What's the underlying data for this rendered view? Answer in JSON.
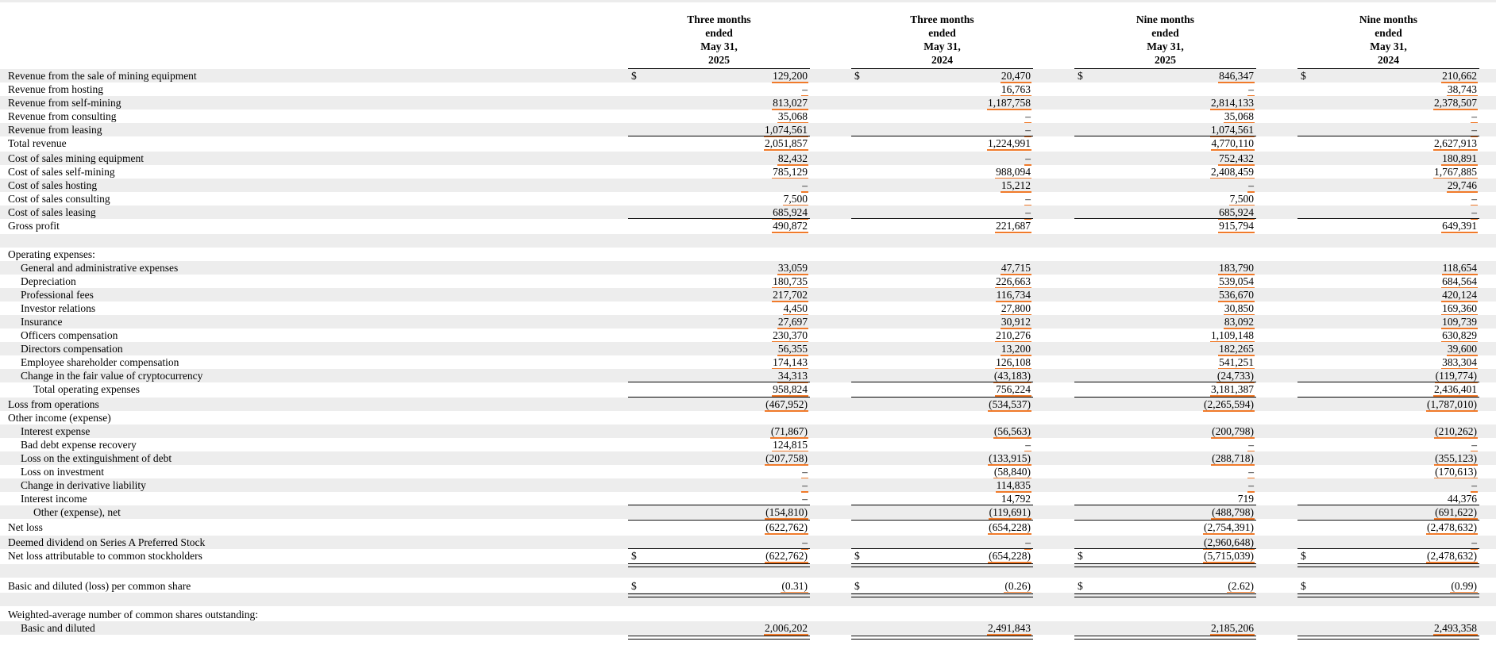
{
  "columns": [
    {
      "h1": "Three months",
      "h2": "ended",
      "h3": "May 31,",
      "h4": "2025"
    },
    {
      "h1": "Three months",
      "h2": "ended",
      "h3": "May 31,",
      "h4": "2024"
    },
    {
      "h1": "Nine months",
      "h2": "ended",
      "h3": "May 31,",
      "h4": "2025"
    },
    {
      "h1": "Nine months",
      "h2": "ended",
      "h3": "May 31,",
      "h4": "2024"
    }
  ],
  "dollar_sign": "$",
  "rows": [
    {
      "label": "Revenue from the sale of mining equipment",
      "values": [
        "129,200",
        "20,470",
        "846,347",
        "210,662"
      ],
      "dollar": true
    },
    {
      "label": "Revenue from hosting",
      "values": [
        "–",
        "16,763",
        "–",
        "38,743"
      ]
    },
    {
      "label": "Revenue from self-mining",
      "values": [
        "813,027",
        "1,187,758",
        "2,814,133",
        "2,378,507"
      ]
    },
    {
      "label": "Revenue from consulting",
      "values": [
        "35,068",
        "–",
        "35,068",
        "–"
      ]
    },
    {
      "label": "Revenue from leasing",
      "values": [
        "1,074,561",
        "–",
        "1,074,561",
        "–"
      ]
    },
    {
      "label": "Total revenue",
      "values": [
        "2,051,857",
        "1,224,991",
        "4,770,110",
        "2,627,913"
      ]
    },
    {
      "label": "Cost of sales mining equipment",
      "values": [
        "82,432",
        "–",
        "752,432",
        "180,891"
      ]
    },
    {
      "label": "Cost of sales self-mining",
      "values": [
        "785,129",
        "988,094",
        "2,408,459",
        "1,767,885"
      ]
    },
    {
      "label": "Cost of sales hosting",
      "values": [
        "–",
        "15,212",
        "–",
        "29,746"
      ]
    },
    {
      "label": "Cost of sales consulting",
      "values": [
        "7,500",
        "–",
        "7,500",
        "–"
      ]
    },
    {
      "label": "Cost of sales leasing",
      "values": [
        "685,924",
        "–",
        "685,924",
        "–"
      ]
    },
    {
      "label": "Gross profit",
      "values": [
        "490,872",
        "221,687",
        "915,794",
        "649,391"
      ]
    },
    {
      "label": "",
      "values": [
        "",
        "",
        "",
        ""
      ]
    },
    {
      "label": "Operating expenses:",
      "values": [
        "",
        "",
        "",
        ""
      ]
    },
    {
      "label": "General and administrative expenses",
      "values": [
        "33,059",
        "47,715",
        "183,790",
        "118,654"
      ],
      "indent": 1
    },
    {
      "label": "Depreciation",
      "values": [
        "180,735",
        "226,663",
        "539,054",
        "684,564"
      ],
      "indent": 1
    },
    {
      "label": "Professional fees",
      "values": [
        "217,702",
        "116,734",
        "536,670",
        "420,124"
      ],
      "indent": 1
    },
    {
      "label": "Investor relations",
      "values": [
        "4,450",
        "27,800",
        "30,850",
        "169,360"
      ],
      "indent": 1
    },
    {
      "label": "Insurance",
      "values": [
        "27,697",
        "30,912",
        "83,092",
        "109,739"
      ],
      "indent": 1
    },
    {
      "label": "Officers compensation",
      "values": [
        "230,370",
        "210,276",
        "1,109,148",
        "630,829"
      ],
      "indent": 1
    },
    {
      "label": "Directors compensation",
      "values": [
        "56,355",
        "13,200",
        "182,265",
        "39,600"
      ],
      "indent": 1
    },
    {
      "label": "Employee shareholder compensation",
      "values": [
        "174,143",
        "126,108",
        "541,251",
        "383,304"
      ],
      "indent": 1
    },
    {
      "label": "Change in the fair value of cryptocurrency",
      "values": [
        "34,313",
        "(43,183)",
        "(24,733)",
        "(119,774)"
      ],
      "indent": 1
    },
    {
      "label": "Total operating expenses",
      "values": [
        "958,824",
        "756,224",
        "3,181,387",
        "2,436,401"
      ],
      "indent": 2
    },
    {
      "label": "Loss from operations",
      "values": [
        "(467,952)",
        "(534,537)",
        "(2,265,594)",
        "(1,787,010)"
      ]
    },
    {
      "label": "Other income (expense)",
      "values": [
        "",
        "",
        "",
        ""
      ]
    },
    {
      "label": "Interest expense",
      "values": [
        "(71,867)",
        "(56,563)",
        "(200,798)",
        "(210,262)"
      ],
      "indent": 1
    },
    {
      "label": "Bad debt expense recovery",
      "values": [
        "124,815",
        "–",
        "–",
        "–"
      ],
      "indent": 1
    },
    {
      "label": "Loss on the extinguishment of debt",
      "values": [
        "(207,758)",
        "(133,915)",
        "(288,718)",
        "(355,123)"
      ],
      "indent": 1
    },
    {
      "label": "Loss on investment",
      "values": [
        "–",
        "(58,840)",
        "–",
        "(170,613)"
      ],
      "indent": 1
    },
    {
      "label": "Change in derivative liability",
      "values": [
        "–",
        "114,835",
        "–",
        "–"
      ],
      "indent": 1
    },
    {
      "label": "Interest income",
      "values": [
        "–",
        "14,792",
        "719",
        "44,376"
      ],
      "indent": 1
    },
    {
      "label": "Other (expense), net",
      "values": [
        "(154,810)",
        "(119,691)",
        "(488,798)",
        "(691,622)"
      ],
      "indent": 2
    },
    {
      "label": "Net loss",
      "values": [
        "(622,762)",
        "(654,228)",
        "(2,754,391)",
        "(2,478,632)"
      ]
    },
    {
      "label": "Deemed dividend on Series A Preferred Stock",
      "values": [
        "–",
        "–",
        "(2,960,648)",
        "–"
      ]
    },
    {
      "label": "Net loss attributable to common stockholders",
      "values": [
        "(622,762)",
        "(654,228)",
        "(5,715,039)",
        "(2,478,632)"
      ],
      "dollar": true
    },
    {
      "label": "",
      "values": [
        "",
        "",
        "",
        ""
      ]
    },
    {
      "label": "Basic and diluted (loss) per common share",
      "values": [
        "(0.31)",
        "(0.26)",
        "(2.62)",
        "(0.99)"
      ],
      "dollar": true
    },
    {
      "label": "",
      "values": [
        "",
        "",
        "",
        ""
      ]
    },
    {
      "label": "Weighted-average number of common shares outstanding:",
      "values": [
        "",
        "",
        "",
        ""
      ]
    },
    {
      "label": "Basic and diluted",
      "values": [
        "2,006,202",
        "2,491,843",
        "2,185,206",
        "2,493,358"
      ],
      "indent": 1
    }
  ]
}
